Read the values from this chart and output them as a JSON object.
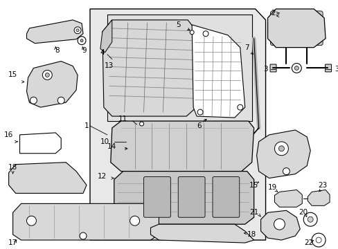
{
  "bg_color": "#ffffff",
  "line_color": "#000000",
  "figsize": [
    4.89,
    3.6
  ],
  "dpi": 100,
  "light_gray": "#e8e8e8",
  "mid_gray": "#d0d0d0"
}
